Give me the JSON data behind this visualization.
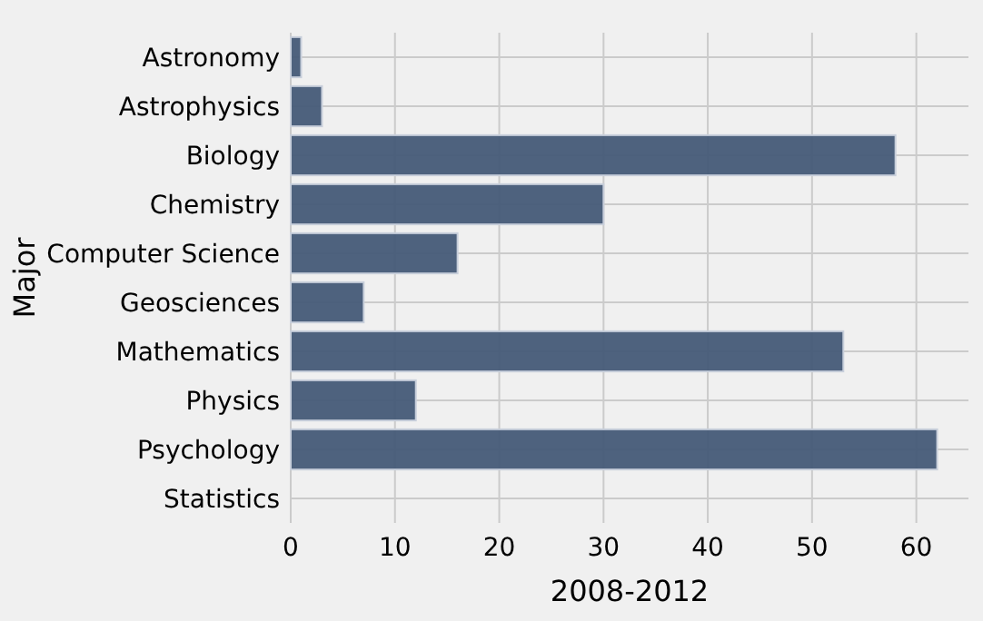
{
  "chart_data": {
    "type": "bar",
    "orientation": "horizontal",
    "xlabel": "2008-2012",
    "ylabel": "Major",
    "categories": [
      "Astronomy",
      "Astrophysics",
      "Biology",
      "Chemistry",
      "Computer Science",
      "Geosciences",
      "Mathematics",
      "Physics",
      "Psychology",
      "Statistics"
    ],
    "values": [
      1,
      3,
      58,
      30,
      16,
      7,
      53,
      12,
      62,
      0
    ],
    "color": "#455a77",
    "xlim": [
      0,
      65
    ],
    "xticks": [
      0,
      10,
      20,
      30,
      40,
      50,
      60
    ],
    "grid": true
  }
}
